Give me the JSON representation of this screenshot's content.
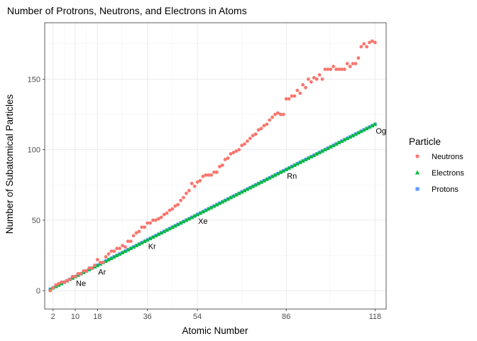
{
  "chart_data": {
    "type": "scatter",
    "title": "Number of Protrons, Neutrons, and Electrons in Atoms",
    "xlabel": "Atomic Number",
    "ylabel": "Number of Subatomical Particles",
    "xlim": [
      -1,
      122
    ],
    "ylim": [
      -13,
      190
    ],
    "x_ticks": [
      2,
      10,
      18,
      36,
      54,
      86,
      118
    ],
    "y_ticks": [
      0,
      50,
      100,
      150
    ],
    "grid": true,
    "legend": {
      "title": "Particle",
      "position": "right",
      "entries": [
        {
          "name": "Neutrons",
          "color": "#F8766D",
          "shape": "circle"
        },
        {
          "name": "Electrons",
          "color": "#00BA38",
          "shape": "triangle"
        },
        {
          "name": "Protons",
          "color": "#619CFF",
          "shape": "square"
        }
      ]
    },
    "annotations": [
      {
        "x": 10,
        "y": 10,
        "text": "Ne"
      },
      {
        "x": 18,
        "y": 18,
        "text": "Ar"
      },
      {
        "x": 36,
        "y": 36,
        "text": "Kr"
      },
      {
        "x": 54,
        "y": 54,
        "text": "Xe"
      },
      {
        "x": 86,
        "y": 86,
        "text": "Rn"
      },
      {
        "x": 118,
        "y": 118,
        "text": "Og"
      }
    ],
    "series": [
      {
        "name": "Neutrons",
        "x": [
          1,
          2,
          3,
          4,
          5,
          6,
          7,
          8,
          9,
          10,
          11,
          12,
          13,
          14,
          15,
          16,
          17,
          18,
          19,
          20,
          21,
          22,
          23,
          24,
          25,
          26,
          27,
          28,
          29,
          30,
          31,
          32,
          33,
          34,
          35,
          36,
          37,
          38,
          39,
          40,
          41,
          42,
          43,
          44,
          45,
          46,
          47,
          48,
          49,
          50,
          51,
          52,
          53,
          54,
          55,
          56,
          57,
          58,
          59,
          60,
          61,
          62,
          63,
          64,
          65,
          66,
          67,
          68,
          69,
          70,
          71,
          72,
          73,
          74,
          75,
          76,
          77,
          78,
          79,
          80,
          81,
          82,
          83,
          84,
          85,
          86,
          87,
          88,
          89,
          90,
          91,
          92,
          93,
          94,
          95,
          96,
          97,
          98,
          99,
          100,
          101,
          102,
          103,
          104,
          105,
          106,
          107,
          108,
          109,
          110,
          111,
          112,
          113,
          114,
          115,
          116,
          117,
          118
        ],
        "values": [
          0,
          2,
          4,
          5,
          6,
          6,
          7,
          8,
          10,
          10,
          12,
          12,
          14,
          14,
          16,
          16,
          18,
          22,
          20,
          20,
          24,
          26,
          28,
          28,
          30,
          30,
          32,
          31,
          35,
          35,
          39,
          41,
          42,
          45,
          45,
          48,
          48,
          50,
          50,
          51,
          52,
          54,
          55,
          57,
          58,
          60,
          61,
          64,
          66,
          69,
          71,
          76,
          74,
          77,
          78,
          81,
          82,
          82,
          82,
          84,
          84,
          88,
          89,
          93,
          94,
          97,
          98,
          99,
          100,
          103,
          104,
          106,
          108,
          110,
          111,
          114,
          115,
          117,
          118,
          121,
          123,
          125,
          126,
          125,
          125,
          136,
          136,
          138,
          138,
          142,
          140,
          146,
          144,
          150,
          148,
          151,
          150,
          153,
          150,
          157,
          157,
          157,
          159,
          157,
          157,
          157,
          157,
          161,
          159,
          161,
          161,
          165,
          173,
          175,
          173,
          176,
          177,
          176
        ]
      },
      {
        "name": "Electrons",
        "x": [
          1,
          2,
          3,
          4,
          5,
          6,
          7,
          8,
          9,
          10,
          11,
          12,
          13,
          14,
          15,
          16,
          17,
          18,
          19,
          20,
          21,
          22,
          23,
          24,
          25,
          26,
          27,
          28,
          29,
          30,
          31,
          32,
          33,
          34,
          35,
          36,
          37,
          38,
          39,
          40,
          41,
          42,
          43,
          44,
          45,
          46,
          47,
          48,
          49,
          50,
          51,
          52,
          53,
          54,
          55,
          56,
          57,
          58,
          59,
          60,
          61,
          62,
          63,
          64,
          65,
          66,
          67,
          68,
          69,
          70,
          71,
          72,
          73,
          74,
          75,
          76,
          77,
          78,
          79,
          80,
          81,
          82,
          83,
          84,
          85,
          86,
          87,
          88,
          89,
          90,
          91,
          92,
          93,
          94,
          95,
          96,
          97,
          98,
          99,
          100,
          101,
          102,
          103,
          104,
          105,
          106,
          107,
          108,
          109,
          110,
          111,
          112,
          113,
          114,
          115,
          116,
          117,
          118
        ],
        "values": [
          1,
          2,
          3,
          4,
          5,
          6,
          7,
          8,
          9,
          10,
          11,
          12,
          13,
          14,
          15,
          16,
          17,
          18,
          19,
          20,
          21,
          22,
          23,
          24,
          25,
          26,
          27,
          28,
          29,
          30,
          31,
          32,
          33,
          34,
          35,
          36,
          37,
          38,
          39,
          40,
          41,
          42,
          43,
          44,
          45,
          46,
          47,
          48,
          49,
          50,
          51,
          52,
          53,
          54,
          55,
          56,
          57,
          58,
          59,
          60,
          61,
          62,
          63,
          64,
          65,
          66,
          67,
          68,
          69,
          70,
          71,
          72,
          73,
          74,
          75,
          76,
          77,
          78,
          79,
          80,
          81,
          82,
          83,
          84,
          85,
          86,
          87,
          88,
          89,
          90,
          91,
          92,
          93,
          94,
          95,
          96,
          97,
          98,
          99,
          100,
          101,
          102,
          103,
          104,
          105,
          106,
          107,
          108,
          109,
          110,
          111,
          112,
          113,
          114,
          115,
          116,
          117,
          118
        ]
      },
      {
        "name": "Protons",
        "x": [
          1,
          2,
          3,
          4,
          5,
          6,
          7,
          8,
          9,
          10,
          11,
          12,
          13,
          14,
          15,
          16,
          17,
          18,
          19,
          20,
          21,
          22,
          23,
          24,
          25,
          26,
          27,
          28,
          29,
          30,
          31,
          32,
          33,
          34,
          35,
          36,
          37,
          38,
          39,
          40,
          41,
          42,
          43,
          44,
          45,
          46,
          47,
          48,
          49,
          50,
          51,
          52,
          53,
          54,
          55,
          56,
          57,
          58,
          59,
          60,
          61,
          62,
          63,
          64,
          65,
          66,
          67,
          68,
          69,
          70,
          71,
          72,
          73,
          74,
          75,
          76,
          77,
          78,
          79,
          80,
          81,
          82,
          83,
          84,
          85,
          86,
          87,
          88,
          89,
          90,
          91,
          92,
          93,
          94,
          95,
          96,
          97,
          98,
          99,
          100,
          101,
          102,
          103,
          104,
          105,
          106,
          107,
          108,
          109,
          110,
          111,
          112,
          113,
          114,
          115,
          116,
          117,
          118
        ],
        "values": [
          1,
          2,
          3,
          4,
          5,
          6,
          7,
          8,
          9,
          10,
          11,
          12,
          13,
          14,
          15,
          16,
          17,
          18,
          19,
          20,
          21,
          22,
          23,
          24,
          25,
          26,
          27,
          28,
          29,
          30,
          31,
          32,
          33,
          34,
          35,
          36,
          37,
          38,
          39,
          40,
          41,
          42,
          43,
          44,
          45,
          46,
          47,
          48,
          49,
          50,
          51,
          52,
          53,
          54,
          55,
          56,
          57,
          58,
          59,
          60,
          61,
          62,
          63,
          64,
          65,
          66,
          67,
          68,
          69,
          70,
          71,
          72,
          73,
          74,
          75,
          76,
          77,
          78,
          79,
          80,
          81,
          82,
          83,
          84,
          85,
          86,
          87,
          88,
          89,
          90,
          91,
          92,
          93,
          94,
          95,
          96,
          97,
          98,
          99,
          100,
          101,
          102,
          103,
          104,
          105,
          106,
          107,
          108,
          109,
          110,
          111,
          112,
          113,
          114,
          115,
          116,
          117,
          118
        ]
      }
    ]
  }
}
